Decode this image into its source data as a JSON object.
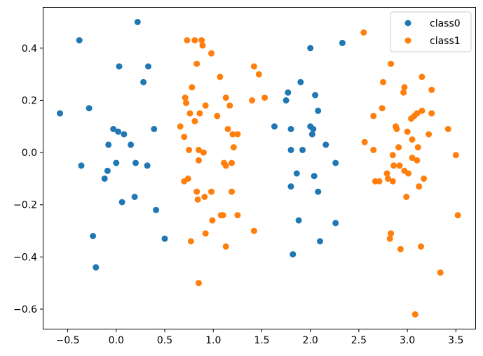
{
  "chart_data": {
    "type": "scatter",
    "title": "",
    "xlabel": "",
    "ylabel": "",
    "xlim": [
      -0.75,
      3.7
    ],
    "ylim": [
      -0.675,
      0.555
    ],
    "xticks": [
      -0.5,
      0.0,
      0.5,
      1.0,
      1.5,
      2.0,
      2.5,
      3.0,
      3.5
    ],
    "xtick_labels": [
      "−0.5",
      "0.0",
      "0.5",
      "1.0",
      "1.5",
      "2.0",
      "2.5",
      "3.0",
      "3.5"
    ],
    "yticks": [
      -0.6,
      -0.4,
      -0.2,
      0.0,
      0.2,
      0.4
    ],
    "ytick_labels": [
      "−0.6",
      "−0.4",
      "−0.2",
      "0.0",
      "0.2",
      "0.4"
    ],
    "grid": false,
    "legend_position": "top-right",
    "series": [
      {
        "name": "class0",
        "color": "#1f77b4",
        "points": [
          [
            0.22,
            0.5
          ],
          [
            -0.38,
            0.43
          ],
          [
            0.03,
            0.33
          ],
          [
            0.33,
            0.33
          ],
          [
            0.28,
            0.27
          ],
          [
            -0.58,
            0.15
          ],
          [
            -0.28,
            0.17
          ],
          [
            0.39,
            0.09
          ],
          [
            -0.03,
            0.09
          ],
          [
            0.02,
            0.08
          ],
          [
            0.08,
            0.07
          ],
          [
            -0.08,
            0.03
          ],
          [
            0.15,
            0.03
          ],
          [
            -0.36,
            -0.05
          ],
          [
            0.0,
            -0.04
          ],
          [
            0.2,
            -0.04
          ],
          [
            0.32,
            -0.05
          ],
          [
            -0.09,
            -0.07
          ],
          [
            -0.12,
            -0.1
          ],
          [
            0.19,
            -0.17
          ],
          [
            0.06,
            -0.19
          ],
          [
            0.41,
            -0.22
          ],
          [
            0.5,
            -0.33
          ],
          [
            -0.24,
            -0.32
          ],
          [
            -0.21,
            -0.44
          ],
          [
            2.0,
            0.4
          ],
          [
            2.33,
            0.42
          ],
          [
            1.9,
            0.27
          ],
          [
            1.77,
            0.23
          ],
          [
            1.75,
            0.2
          ],
          [
            2.05,
            0.22
          ],
          [
            2.08,
            0.16
          ],
          [
            1.63,
            0.1
          ],
          [
            1.8,
            0.09
          ],
          [
            2.0,
            0.1
          ],
          [
            2.03,
            0.09
          ],
          [
            2.02,
            0.07
          ],
          [
            2.16,
            0.03
          ],
          [
            1.8,
            0.01
          ],
          [
            1.92,
            0.01
          ],
          [
            2.26,
            -0.04
          ],
          [
            1.86,
            -0.08
          ],
          [
            2.04,
            -0.09
          ],
          [
            1.8,
            -0.13
          ],
          [
            2.08,
            -0.15
          ],
          [
            1.88,
            -0.26
          ],
          [
            2.26,
            -0.27
          ],
          [
            2.1,
            -0.34
          ],
          [
            1.82,
            -0.39
          ]
        ]
      },
      {
        "name": "class1",
        "color": "#ff7f0e",
        "points": [
          [
            0.73,
            0.43
          ],
          [
            0.81,
            0.43
          ],
          [
            0.88,
            0.43
          ],
          [
            0.89,
            0.41
          ],
          [
            0.98,
            0.38
          ],
          [
            0.83,
            0.34
          ],
          [
            1.07,
            0.29
          ],
          [
            1.42,
            0.33
          ],
          [
            1.47,
            0.3
          ],
          [
            0.78,
            0.25
          ],
          [
            0.71,
            0.21
          ],
          [
            1.13,
            0.21
          ],
          [
            1.4,
            0.2
          ],
          [
            1.53,
            0.21
          ],
          [
            0.72,
            0.19
          ],
          [
            0.92,
            0.18
          ],
          [
            1.17,
            0.18
          ],
          [
            0.76,
            0.15
          ],
          [
            0.86,
            0.15
          ],
          [
            1.04,
            0.14
          ],
          [
            0.81,
            0.12
          ],
          [
            0.66,
            0.1
          ],
          [
            1.15,
            0.09
          ],
          [
            1.2,
            0.07
          ],
          [
            1.25,
            0.07
          ],
          [
            0.7,
            0.06
          ],
          [
            0.75,
            0.01
          ],
          [
            0.85,
            0.01
          ],
          [
            0.9,
            0.0
          ],
          [
            1.21,
            0.02
          ],
          [
            0.85,
            -0.03
          ],
          [
            1.11,
            -0.04
          ],
          [
            1.13,
            -0.05
          ],
          [
            1.19,
            -0.04
          ],
          [
            0.74,
            -0.1
          ],
          [
            0.7,
            -0.11
          ],
          [
            0.98,
            -0.15
          ],
          [
            0.83,
            -0.15
          ],
          [
            0.91,
            -0.17
          ],
          [
            1.19,
            -0.15
          ],
          [
            0.84,
            -0.18
          ],
          [
            1.1,
            -0.24
          ],
          [
            1.08,
            -0.24
          ],
          [
            1.25,
            -0.24
          ],
          [
            0.99,
            -0.26
          ],
          [
            0.92,
            -0.31
          ],
          [
            1.42,
            -0.3
          ],
          [
            0.77,
            -0.34
          ],
          [
            1.13,
            -0.36
          ],
          [
            0.85,
            -0.5
          ],
          [
            2.55,
            0.46
          ],
          [
            2.83,
            0.34
          ],
          [
            2.75,
            0.27
          ],
          [
            2.97,
            0.25
          ],
          [
            2.96,
            0.23
          ],
          [
            3.15,
            0.29
          ],
          [
            3.25,
            0.24
          ],
          [
            2.65,
            0.14
          ],
          [
            2.74,
            0.17
          ],
          [
            2.88,
            0.1
          ],
          [
            2.89,
            0.09
          ],
          [
            3.0,
            0.08
          ],
          [
            3.04,
            0.13
          ],
          [
            3.07,
            0.14
          ],
          [
            3.1,
            0.15
          ],
          [
            3.15,
            0.16
          ],
          [
            3.25,
            0.15
          ],
          [
            3.22,
            0.07
          ],
          [
            3.42,
            0.09
          ],
          [
            2.56,
            0.04
          ],
          [
            2.65,
            0.01
          ],
          [
            3.05,
            0.05
          ],
          [
            3.11,
            0.02
          ],
          [
            2.91,
            0.02
          ],
          [
            2.85,
            -0.01
          ],
          [
            3.05,
            -0.02
          ],
          [
            3.1,
            -0.03
          ],
          [
            3.5,
            -0.01
          ],
          [
            2.79,
            -0.08
          ],
          [
            2.8,
            -0.1
          ],
          [
            2.86,
            -0.05
          ],
          [
            2.92,
            -0.05
          ],
          [
            2.97,
            -0.07
          ],
          [
            3.01,
            -0.08
          ],
          [
            2.67,
            -0.11
          ],
          [
            2.71,
            -0.11
          ],
          [
            2.85,
            -0.11
          ],
          [
            3.17,
            -0.1
          ],
          [
            3.12,
            -0.13
          ],
          [
            2.99,
            -0.17
          ],
          [
            3.52,
            -0.24
          ],
          [
            2.83,
            -0.31
          ],
          [
            2.82,
            -0.33
          ],
          [
            2.93,
            -0.37
          ],
          [
            3.14,
            -0.36
          ],
          [
            3.34,
            -0.46
          ],
          [
            3.08,
            -0.62
          ]
        ]
      }
    ]
  }
}
